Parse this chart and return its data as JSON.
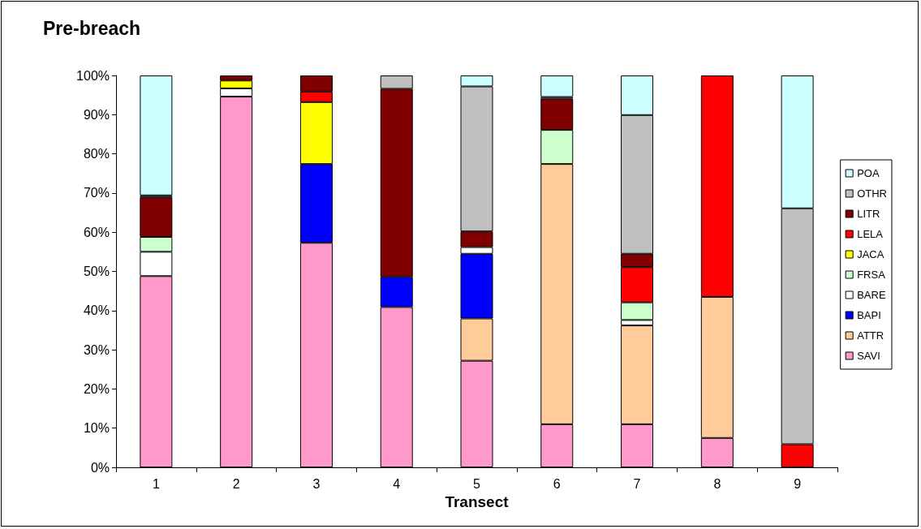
{
  "chart_data": {
    "type": "bar",
    "title": "Pre-breach",
    "xlabel": "Transect",
    "stacked": true,
    "legend": "right",
    "grid": false,
    "categories": [
      "1",
      "2",
      "3",
      "4",
      "5",
      "6",
      "7",
      "8",
      "9"
    ],
    "ylim": [
      0,
      100
    ],
    "yticks": [
      {
        "value": 0,
        "label": "0%"
      },
      {
        "value": 10,
        "label": "10%"
      },
      {
        "value": 20,
        "label": "20%"
      },
      {
        "value": 30,
        "label": "30%"
      },
      {
        "value": 40,
        "label": "40%"
      },
      {
        "value": 50,
        "label": "50%"
      },
      {
        "value": 60,
        "label": "60%"
      },
      {
        "value": 70,
        "label": "70%"
      },
      {
        "value": 80,
        "label": "80%"
      },
      {
        "value": 90,
        "label": "90%"
      },
      {
        "value": 100,
        "label": "100%"
      }
    ],
    "series": [
      {
        "name": "SAVI",
        "color": "#ff99cc",
        "values": [
          48.8,
          94.6,
          57.3,
          40.9,
          27.2,
          11.0,
          11.0,
          7.5,
          null
        ]
      },
      {
        "name": "ATTR",
        "color": "#ffcc99",
        "values": [
          null,
          null,
          null,
          null,
          10.8,
          66.4,
          25.2,
          36.0,
          null
        ]
      },
      {
        "name": "BAPI",
        "color": "#0000ff",
        "values": [
          null,
          null,
          20.1,
          7.7,
          16.5,
          null,
          null,
          null,
          null
        ]
      },
      {
        "name": "BARE",
        "color": "#ffffff",
        "values": [
          6.2,
          2.1,
          null,
          null,
          1.7,
          null,
          1.4,
          null,
          null
        ]
      },
      {
        "name": "FRSA",
        "color": "#ccffcc",
        "values": [
          3.8,
          null,
          null,
          null,
          null,
          8.7,
          4.5,
          null,
          null
        ]
      },
      {
        "name": "JACA",
        "color": "#ffff00",
        "values": [
          null,
          2.0,
          15.8,
          null,
          null,
          null,
          null,
          null,
          null
        ]
      },
      {
        "name": "LELA",
        "color": "#ff0000",
        "values": [
          null,
          null,
          2.7,
          null,
          null,
          null,
          9.0,
          56.5,
          5.9
        ]
      },
      {
        "name": "LITR",
        "color": "#800000",
        "values": [
          10.1,
          1.3,
          4.1,
          48.0,
          4.0,
          8.0,
          3.4,
          null,
          null
        ]
      },
      {
        "name": "OTHR",
        "color": "#c0c0c0",
        "values": [
          0.5,
          null,
          null,
          3.4,
          37.0,
          0.4,
          35.4,
          null,
          60.2
        ]
      },
      {
        "name": "POA",
        "color": "#ccffff",
        "values": [
          30.6,
          null,
          null,
          null,
          2.8,
          5.5,
          10.1,
          null,
          33.9
        ]
      }
    ]
  }
}
